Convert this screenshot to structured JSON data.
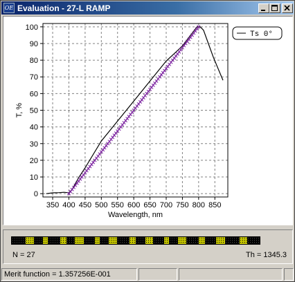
{
  "window": {
    "title": "Evaluation - 27-L RAMP",
    "icon_text": "OE"
  },
  "icons": {
    "minimize": "minimize-icon",
    "maximize": "maximize-icon",
    "close": "close-icon"
  },
  "chart_data": {
    "type": "line",
    "xlabel": "Wavelength, nm",
    "ylabel": "T, %",
    "xlim": [
      320,
      890
    ],
    "ylim": [
      -2,
      102
    ],
    "x_ticks": [
      350,
      400,
      450,
      500,
      550,
      600,
      650,
      700,
      750,
      800,
      850
    ],
    "y_ticks": [
      0,
      10,
      20,
      30,
      40,
      50,
      60,
      70,
      80,
      90,
      100
    ],
    "grid": true,
    "legend_position": "top-right",
    "series": [
      {
        "name": "Ts 0°",
        "color": "#000000",
        "x": [
          330,
          350,
          370,
          385,
          395,
          400,
          410,
          430,
          450,
          500,
          550,
          600,
          650,
          700,
          750,
          795,
          805,
          815,
          830,
          845,
          860,
          875
        ],
        "y": [
          0,
          0.5,
          0.6,
          0.8,
          0.6,
          0.5,
          2.5,
          9.5,
          15.5,
          31.5,
          43.5,
          55.5,
          67.5,
          79.5,
          88.5,
          100,
          100,
          98,
          90,
          82,
          75,
          68
        ]
      }
    ],
    "target_points": {
      "color": "#7a1f9f",
      "x_range": [
        400,
        800
      ],
      "y_range": [
        0,
        100
      ],
      "count": 81
    }
  },
  "info": {
    "n_label": "N = 27",
    "th_label": "Th = 1345.3",
    "layer_colors": [
      "#000000",
      "#c8c800"
    ]
  },
  "status": {
    "merit": "Merit function =  1.357256E-001",
    "cell2": "",
    "cell3": "",
    "cell4": ""
  }
}
